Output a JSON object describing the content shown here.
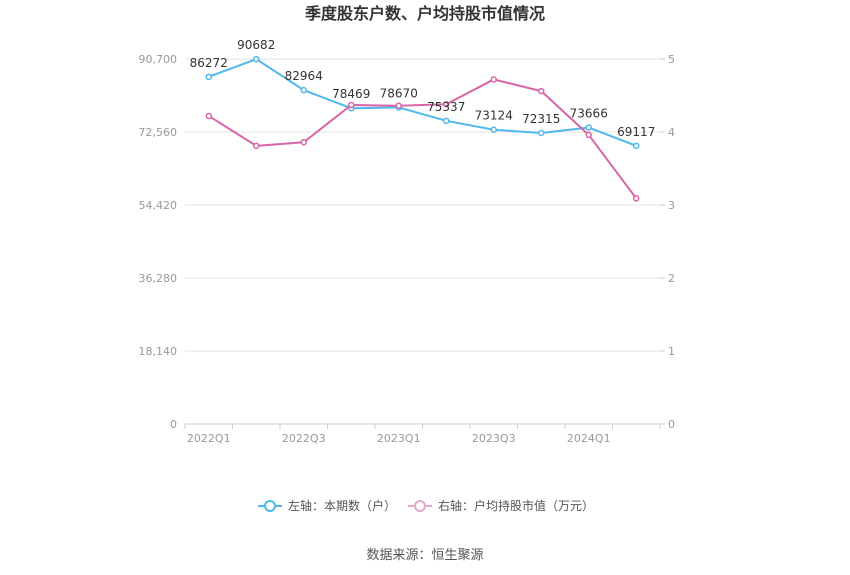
{
  "chart_data": {
    "type": "line",
    "title": "季度股东户数、户均持股市值情况",
    "x": [
      "2022Q1",
      "2022Q2",
      "2022Q3",
      "2022Q4",
      "2023Q1",
      "2023Q2",
      "2023Q3",
      "2023Q4",
      "2024Q1",
      "2024Q2"
    ],
    "x_tick_labels": [
      "2022Q1",
      "2022Q3",
      "2023Q1",
      "2023Q3",
      "2024Q1"
    ],
    "left_axis": {
      "ylim": [
        0,
        90700
      ],
      "ticks": [
        0,
        18140,
        36280,
        54420,
        72560,
        90700
      ],
      "tick_labels": [
        "0",
        "18,140",
        "36,280",
        "54,420",
        "72,560",
        "90,700"
      ]
    },
    "right_axis": {
      "ylim": [
        0,
        5
      ],
      "ticks": [
        0,
        1,
        2,
        3,
        4,
        5
      ],
      "tick_labels": [
        "0",
        "1",
        "2",
        "3",
        "4",
        "5"
      ]
    },
    "series": [
      {
        "name": "左轴：本期数（户）",
        "axis": "left",
        "color": "#4fb8ec",
        "values": [
          86272,
          90682,
          82964,
          78469,
          78670,
          75337,
          73124,
          72315,
          73666,
          69117
        ],
        "labels": [
          "86272",
          "90682",
          "82964",
          "78469",
          "78670",
          "75337",
          "73124",
          "72315",
          "73666",
          "69117"
        ]
      },
      {
        "name": "右轴：户均持股市值（万元）",
        "axis": "right",
        "color": "#d865a8",
        "values": [
          4.22,
          3.81,
          3.86,
          4.37,
          4.36,
          4.38,
          4.72,
          4.56,
          3.96,
          3.09
        ]
      }
    ],
    "legend_position": "bottom",
    "grid": true
  },
  "footer": {
    "source": "数据来源：恒生聚源"
  }
}
